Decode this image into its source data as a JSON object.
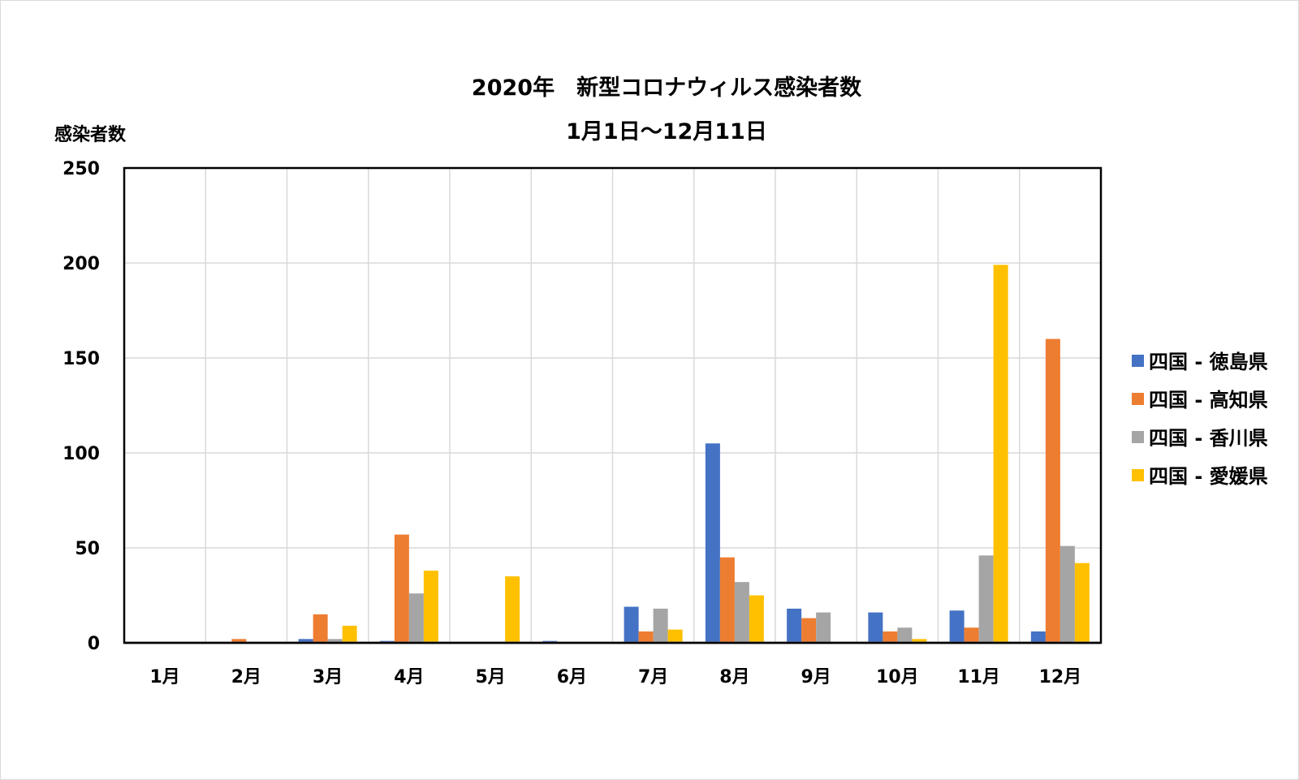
{
  "chart_data": {
    "type": "bar",
    "title": "2020年　新型コロナウィルス感染者数",
    "subtitle": "1月1日～12月11日",
    "ylabel": "感染者数",
    "xlabel": "",
    "ylim": [
      0,
      250
    ],
    "yticks": [
      "0",
      "50",
      "100",
      "150",
      "200",
      "250"
    ],
    "ytick_values": [
      0,
      50,
      100,
      150,
      200,
      250
    ],
    "grid": true,
    "legend_position": "right",
    "categories": [
      "1月",
      "2月",
      "3月",
      "4月",
      "5月",
      "6月",
      "7月",
      "8月",
      "9月",
      "10月",
      "11月",
      "12月"
    ],
    "series": [
      {
        "name": "四国 - 徳島県",
        "color": "#4472c4",
        "values": [
          0,
          0,
          2,
          1,
          0,
          1,
          19,
          105,
          18,
          16,
          17,
          6
        ]
      },
      {
        "name": "四国 - 高知県",
        "color": "#ed7d31",
        "values": [
          0,
          2,
          15,
          57,
          0,
          0,
          6,
          45,
          13,
          6,
          8,
          160
        ]
      },
      {
        "name": "四国 - 香川県",
        "color": "#a5a5a5",
        "values": [
          0,
          0,
          2,
          26,
          0,
          0,
          18,
          32,
          16,
          8,
          46,
          51
        ]
      },
      {
        "name": "四国 - 愛媛県",
        "color": "#ffc000",
        "values": [
          0,
          0,
          9,
          38,
          35,
          0,
          7,
          25,
          0,
          2,
          199,
          42
        ]
      }
    ]
  }
}
